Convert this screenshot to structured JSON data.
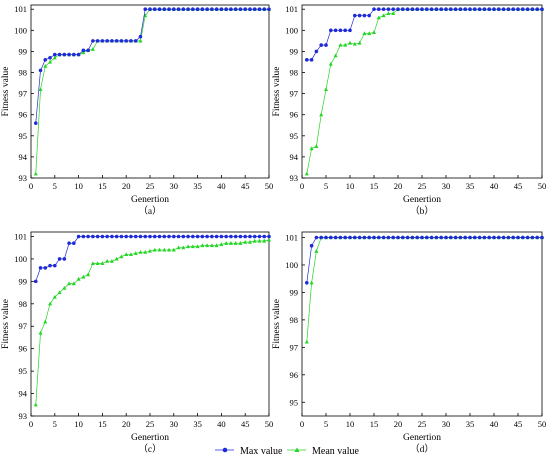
{
  "charts": [
    {
      "type": "line",
      "xlabel": "Genertion",
      "ylabel": "Fitness value",
      "caption": "（a）",
      "xlim": [
        0,
        50
      ],
      "ylim": [
        93,
        101.2
      ],
      "xticks": [
        0,
        5,
        10,
        15,
        20,
        25,
        30,
        35,
        40,
        45,
        50
      ],
      "yticks": [
        93,
        94,
        95,
        96,
        97,
        98,
        99,
        100,
        101
      ],
      "x": [
        1,
        2,
        3,
        4,
        5,
        6,
        7,
        8,
        9,
        10,
        11,
        12,
        13,
        14,
        15,
        16,
        17,
        18,
        19,
        20,
        21,
        22,
        23,
        24,
        25,
        26,
        27,
        28,
        29,
        30,
        31,
        32,
        33,
        34,
        35,
        36,
        37,
        38,
        39,
        40,
        41,
        42,
        43,
        44,
        45,
        46,
        47,
        48,
        49,
        50
      ],
      "series": [
        {
          "name": "Max value",
          "values": [
            95.6,
            98.1,
            98.6,
            98.7,
            98.85,
            98.85,
            98.85,
            98.85,
            98.85,
            98.85,
            99.05,
            99.05,
            99.5,
            99.5,
            99.5,
            99.5,
            99.5,
            99.5,
            99.5,
            99.5,
            99.5,
            99.5,
            99.7,
            101,
            101,
            101,
            101,
            101,
            101,
            101,
            101,
            101,
            101,
            101,
            101,
            101,
            101,
            101,
            101,
            101,
            101,
            101,
            101,
            101,
            101,
            101,
            101,
            101,
            101,
            101
          ]
        },
        {
          "name": "Mean value",
          "values": [
            93.2,
            97.2,
            98.3,
            98.5,
            98.7,
            98.85,
            98.85,
            98.85,
            98.85,
            98.85,
            98.95,
            99.05,
            99.1,
            99.5,
            99.5,
            99.5,
            99.5,
            99.5,
            99.5,
            99.5,
            99.5,
            99.5,
            99.5,
            100.7,
            101,
            101,
            101,
            101,
            101,
            101,
            101,
            101,
            101,
            101,
            101,
            101,
            101,
            101,
            101,
            101,
            101,
            101,
            101,
            101,
            101,
            101,
            101,
            101,
            101,
            101
          ]
        }
      ]
    },
    {
      "type": "line",
      "xlabel": "Genertion",
      "ylabel": "Fitness value",
      "caption": "（b）",
      "xlim": [
        0,
        50
      ],
      "ylim": [
        93,
        101.2
      ],
      "xticks": [
        0,
        5,
        10,
        15,
        20,
        25,
        30,
        35,
        40,
        45,
        50
      ],
      "yticks": [
        93,
        94,
        95,
        96,
        97,
        98,
        99,
        100,
        101
      ],
      "x": [
        1,
        2,
        3,
        4,
        5,
        6,
        7,
        8,
        9,
        10,
        11,
        12,
        13,
        14,
        15,
        16,
        17,
        18,
        19,
        20,
        21,
        22,
        23,
        24,
        25,
        26,
        27,
        28,
        29,
        30,
        31,
        32,
        33,
        34,
        35,
        36,
        37,
        38,
        39,
        40,
        41,
        42,
        43,
        44,
        45,
        46,
        47,
        48,
        49,
        50
      ],
      "series": [
        {
          "name": "Max value",
          "values": [
            98.6,
            98.6,
            99.0,
            99.3,
            99.3,
            100,
            100,
            100,
            100,
            100,
            100.7,
            100.7,
            100.7,
            100.7,
            101,
            101,
            101,
            101,
            101,
            101,
            101,
            101,
            101,
            101,
            101,
            101,
            101,
            101,
            101,
            101,
            101,
            101,
            101,
            101,
            101,
            101,
            101,
            101,
            101,
            101,
            101,
            101,
            101,
            101,
            101,
            101,
            101,
            101,
            101,
            101
          ]
        },
        {
          "name": "Mean value",
          "values": [
            93.2,
            94.4,
            94.5,
            96.0,
            97.2,
            98.4,
            98.8,
            99.3,
            99.3,
            99.4,
            99.35,
            99.4,
            99.85,
            99.85,
            99.9,
            100.6,
            100.7,
            100.8,
            100.8,
            101,
            101,
            101,
            101,
            101,
            101,
            101,
            101,
            101,
            101,
            101,
            101,
            101,
            101,
            101,
            101,
            101,
            101,
            101,
            101,
            101,
            101,
            101,
            101,
            101,
            101,
            101,
            101,
            101,
            101,
            101
          ]
        }
      ]
    },
    {
      "type": "line",
      "xlabel": "Genertion",
      "ylabel": "Fitness value",
      "caption": "（c）",
      "xlim": [
        0,
        50
      ],
      "ylim": [
        93,
        101.2
      ],
      "xticks": [
        0,
        5,
        10,
        15,
        20,
        25,
        30,
        35,
        40,
        45,
        50
      ],
      "yticks": [
        93,
        94,
        95,
        96,
        97,
        98,
        99,
        100,
        101
      ],
      "x": [
        1,
        2,
        3,
        4,
        5,
        6,
        7,
        8,
        9,
        10,
        11,
        12,
        13,
        14,
        15,
        16,
        17,
        18,
        19,
        20,
        21,
        22,
        23,
        24,
        25,
        26,
        27,
        28,
        29,
        30,
        31,
        32,
        33,
        34,
        35,
        36,
        37,
        38,
        39,
        40,
        41,
        42,
        43,
        44,
        45,
        46,
        47,
        48,
        49,
        50
      ],
      "series": [
        {
          "name": "Max value",
          "values": [
            99.0,
            99.6,
            99.6,
            99.7,
            99.7,
            100,
            100,
            100.7,
            100.7,
            101,
            101,
            101,
            101,
            101,
            101,
            101,
            101,
            101,
            101,
            101,
            101,
            101,
            101,
            101,
            101,
            101,
            101,
            101,
            101,
            101,
            101,
            101,
            101,
            101,
            101,
            101,
            101,
            101,
            101,
            101,
            101,
            101,
            101,
            101,
            101,
            101,
            101,
            101,
            101,
            101
          ]
        },
        {
          "name": "Mean value",
          "values": [
            93.5,
            96.7,
            97.2,
            98.0,
            98.3,
            98.5,
            98.7,
            98.9,
            98.9,
            99.1,
            99.2,
            99.3,
            99.8,
            99.8,
            99.8,
            99.9,
            99.9,
            100.0,
            100.1,
            100.2,
            100.2,
            100.25,
            100.3,
            100.3,
            100.35,
            100.4,
            100.4,
            100.4,
            100.4,
            100.4,
            100.5,
            100.5,
            100.55,
            100.55,
            100.55,
            100.6,
            100.6,
            100.6,
            100.6,
            100.65,
            100.7,
            100.7,
            100.7,
            100.7,
            100.75,
            100.75,
            100.8,
            100.8,
            100.8,
            100.85
          ]
        }
      ]
    },
    {
      "type": "line",
      "xlabel": "Genertion",
      "ylabel": "Fitness value",
      "caption": "（d）",
      "xlim": [
        0,
        50
      ],
      "ylim": [
        94.5,
        101.2
      ],
      "xticks": [
        0,
        5,
        10,
        15,
        20,
        25,
        30,
        35,
        40,
        45,
        50
      ],
      "yticks": [
        95,
        96,
        97,
        98,
        99,
        100,
        101
      ],
      "x": [
        1,
        2,
        3,
        4,
        5,
        6,
        7,
        8,
        9,
        10,
        11,
        12,
        13,
        14,
        15,
        16,
        17,
        18,
        19,
        20,
        21,
        22,
        23,
        24,
        25,
        26,
        27,
        28,
        29,
        30,
        31,
        32,
        33,
        34,
        35,
        36,
        37,
        38,
        39,
        40,
        41,
        42,
        43,
        44,
        45,
        46,
        47,
        48,
        49,
        50
      ],
      "series": [
        {
          "name": "Max value",
          "values": [
            99.35,
            100.7,
            101,
            101,
            101,
            101,
            101,
            101,
            101,
            101,
            101,
            101,
            101,
            101,
            101,
            101,
            101,
            101,
            101,
            101,
            101,
            101,
            101,
            101,
            101,
            101,
            101,
            101,
            101,
            101,
            101,
            101,
            101,
            101,
            101,
            101,
            101,
            101,
            101,
            101,
            101,
            101,
            101,
            101,
            101,
            101,
            101,
            101,
            101,
            101
          ]
        },
        {
          "name": "Mean value",
          "values": [
            97.2,
            99.35,
            100.5,
            101,
            101,
            101,
            101,
            101,
            101,
            101,
            101,
            101,
            101,
            101,
            101,
            101,
            101,
            101,
            101,
            101,
            101,
            101,
            101,
            101,
            101,
            101,
            101,
            101,
            101,
            101,
            101,
            101,
            101,
            101,
            101,
            101,
            101,
            101,
            101,
            101,
            101,
            101,
            101,
            101,
            101,
            101,
            101,
            101,
            101,
            101
          ]
        }
      ]
    }
  ],
  "legend": {
    "placement": "bottom-center",
    "items": [
      {
        "label": "Max value",
        "color": "#1f2bd6",
        "marker": "circle"
      },
      {
        "label": "Mean value",
        "color": "#23d623",
        "marker": "triangle"
      }
    ]
  },
  "colors": {
    "max": "#1f2bd6",
    "mean": "#23d623",
    "axis": "#000000"
  }
}
